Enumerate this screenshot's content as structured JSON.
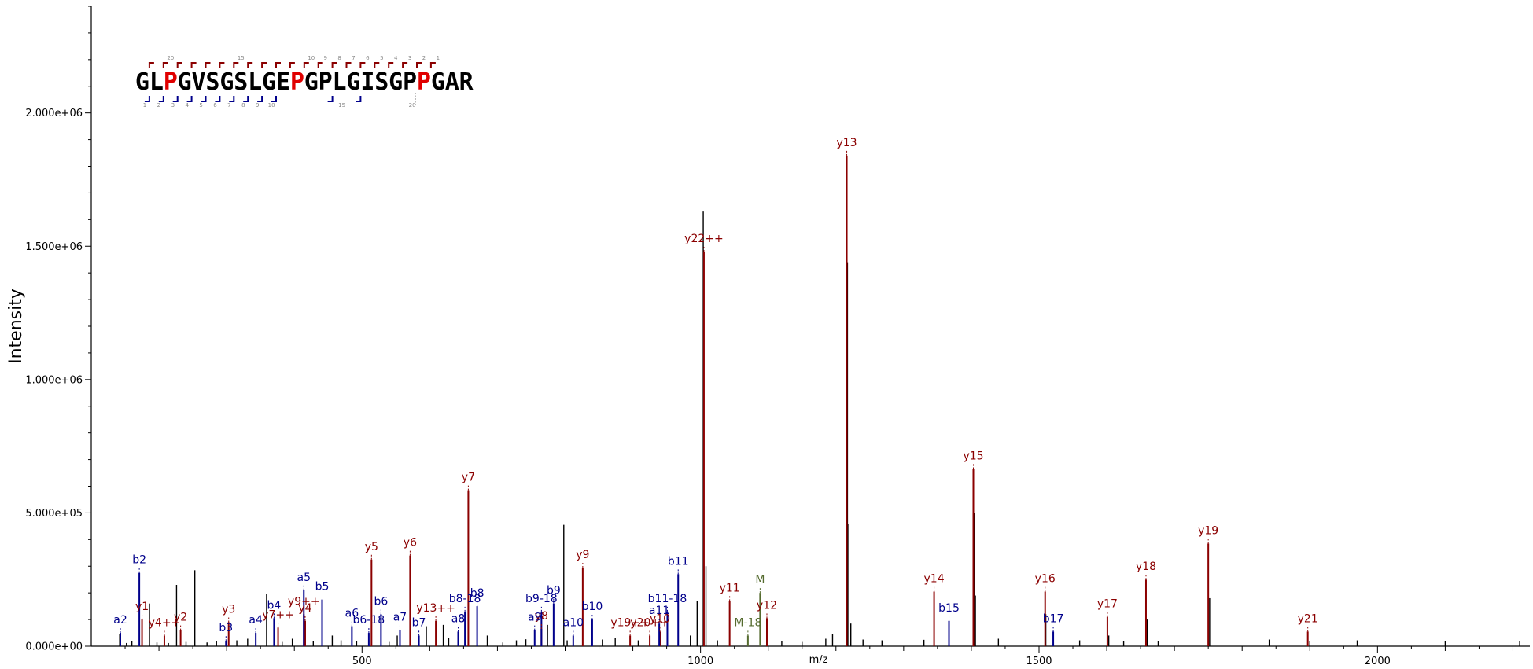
{
  "chart_data": {
    "type": "bar",
    "xlabel": "m/z",
    "ylabel": "Intensity",
    "xlim": [
      100,
      2225
    ],
    "ylim": [
      0,
      2400000
    ],
    "x_ticks": [
      500,
      1000,
      1500,
      2000
    ],
    "x_tick_labels": [
      "500",
      "1000",
      "1500",
      "2000"
    ],
    "y_ticks": [
      0,
      500000,
      1000000,
      1500000,
      2000000
    ],
    "y_tick_labels": [
      "0.000e+00",
      "5.000e+05",
      "1.000e+06",
      "1.500e+06",
      "2.000e+06"
    ],
    "colors": {
      "y": "#8b0000",
      "b": "#00008b",
      "m": "#556b2f",
      "unassigned": "#000000",
      "proline": "#e00000"
    },
    "sequence": [
      "G",
      "L",
      "P",
      "G",
      "V",
      "S",
      "G",
      "S",
      "L",
      "G",
      "E",
      "P",
      "G",
      "P",
      "L",
      "G",
      "I",
      "S",
      "G",
      "P",
      "P",
      "G",
      "A",
      "R"
    ],
    "sequence_top_numbers": [
      {
        "index": 2,
        "label": "20"
      },
      {
        "index": 7,
        "label": "15"
      },
      {
        "index": 12,
        "label": "10"
      },
      {
        "index": 13,
        "label": "9"
      },
      {
        "index": 14,
        "label": "8"
      },
      {
        "index": 15,
        "label": "7"
      },
      {
        "index": 16,
        "label": "6"
      },
      {
        "index": 17,
        "label": "5"
      },
      {
        "index": 18,
        "label": "4"
      },
      {
        "index": 19,
        "label": "3"
      },
      {
        "index": 20,
        "label": "2"
      },
      {
        "index": 21,
        "label": "1"
      }
    ],
    "sequence_bottom_numbers": [
      {
        "index": 0,
        "label": "1"
      },
      {
        "index": 1,
        "label": "2"
      },
      {
        "index": 2,
        "label": "3"
      },
      {
        "index": 3,
        "label": "4"
      },
      {
        "index": 4,
        "label": "5"
      },
      {
        "index": 5,
        "label": "6"
      },
      {
        "index": 6,
        "label": "7"
      },
      {
        "index": 7,
        "label": "8"
      },
      {
        "index": 8,
        "label": "9"
      },
      {
        "index": 9,
        "label": "10"
      },
      {
        "index": 14,
        "label": "15"
      },
      {
        "index": 19,
        "label": "20"
      }
    ],
    "proline_positions": [
      2,
      11,
      20
    ],
    "y_bracket_positions": [
      1,
      2,
      3,
      4,
      5,
      6,
      7,
      8,
      9,
      10,
      11,
      12,
      13,
      14,
      15,
      16,
      17,
      18,
      19,
      20,
      21
    ],
    "b_bracket_positions": [
      1,
      2,
      3,
      4,
      5,
      6,
      7,
      8,
      9,
      10,
      14,
      16
    ],
    "labeled_peaks": [
      {
        "mz": 1216,
        "intensity": 1840000,
        "label": "y13",
        "series": "y"
      },
      {
        "mz": 1005,
        "intensity": 1480000,
        "label": "y22++",
        "series": "y"
      },
      {
        "mz": 1403,
        "intensity": 665000,
        "label": "y15",
        "series": "y"
      },
      {
        "mz": 657,
        "intensity": 585000,
        "label": "y7",
        "series": "y"
      },
      {
        "mz": 1750,
        "intensity": 385000,
        "label": "y19",
        "series": "y"
      },
      {
        "mz": 514,
        "intensity": 325000,
        "label": "y5",
        "series": "y"
      },
      {
        "mz": 571,
        "intensity": 340000,
        "label": "y6",
        "series": "y"
      },
      {
        "mz": 826,
        "intensity": 295000,
        "label": "y9",
        "series": "y"
      },
      {
        "mz": 1658,
        "intensity": 250000,
        "label": "y18",
        "series": "y"
      },
      {
        "mz": 1509,
        "intensity": 205000,
        "label": "y16",
        "series": "y"
      },
      {
        "mz": 1345,
        "intensity": 205000,
        "label": "y14",
        "series": "y"
      },
      {
        "mz": 1601,
        "intensity": 110000,
        "label": "y17",
        "series": "y"
      },
      {
        "mz": 1043,
        "intensity": 170000,
        "label": "y11",
        "series": "y"
      },
      {
        "mz": 1098,
        "intensity": 105000,
        "label": "y12",
        "series": "y"
      },
      {
        "mz": 1897,
        "intensity": 55000,
        "label": "y21",
        "series": "y"
      },
      {
        "mz": 175,
        "intensity": 100000,
        "label": "y1",
        "series": "y"
      },
      {
        "mz": 232,
        "intensity": 60000,
        "label": "y2",
        "series": "y"
      },
      {
        "mz": 303,
        "intensity": 90000,
        "label": "y3",
        "series": "y"
      },
      {
        "mz": 416,
        "intensity": 95000,
        "label": "y4",
        "series": "y"
      },
      {
        "mz": 208,
        "intensity": 40000,
        "label": "y4++",
        "series": "y"
      },
      {
        "mz": 376,
        "intensity": 70000,
        "label": "y7++",
        "series": "y"
      },
      {
        "mz": 414,
        "intensity": 120000,
        "label": "y9++",
        "series": "y"
      },
      {
        "mz": 609,
        "intensity": 95000,
        "label": "y13++",
        "series": "y"
      },
      {
        "mz": 765,
        "intensity": 65000,
        "label": "y8",
        "series": "y"
      },
      {
        "mz": 896,
        "intensity": 40000,
        "label": "y19++",
        "series": "y"
      },
      {
        "mz": 925,
        "intensity": 40000,
        "label": "y20++",
        "series": "y"
      },
      {
        "mz": 940,
        "intensity": 55000,
        "label": "y10",
        "series": "y"
      },
      {
        "mz": 171,
        "intensity": 275000,
        "label": "b2",
        "series": "b"
      },
      {
        "mz": 143,
        "intensity": 50000,
        "label": "a2",
        "series": "b"
      },
      {
        "mz": 299,
        "intensity": 20000,
        "label": "b3",
        "series": "b"
      },
      {
        "mz": 343,
        "intensity": 50000,
        "label": "a4",
        "series": "b"
      },
      {
        "mz": 370,
        "intensity": 105000,
        "label": "b4",
        "series": "b"
      },
      {
        "mz": 414,
        "intensity": 210000,
        "label": "a5",
        "series": "b"
      },
      {
        "mz": 441,
        "intensity": 175000,
        "label": "b5",
        "series": "b"
      },
      {
        "mz": 485,
        "intensity": 75000,
        "label": "a6",
        "series": "b"
      },
      {
        "mz": 510,
        "intensity": 50000,
        "label": "b6-18",
        "series": "b"
      },
      {
        "mz": 528,
        "intensity": 120000,
        "label": "b6",
        "series": "b"
      },
      {
        "mz": 556,
        "intensity": 60000,
        "label": "a7",
        "series": "b"
      },
      {
        "mz": 584,
        "intensity": 40000,
        "label": "b7",
        "series": "b"
      },
      {
        "mz": 642,
        "intensity": 55000,
        "label": "a8",
        "series": "b"
      },
      {
        "mz": 652,
        "intensity": 130000,
        "label": "b8-18",
        "series": "b"
      },
      {
        "mz": 670,
        "intensity": 150000,
        "label": "b8",
        "series": "b"
      },
      {
        "mz": 755,
        "intensity": 60000,
        "label": "a9",
        "series": "b"
      },
      {
        "mz": 765,
        "intensity": 130000,
        "label": "b9-18",
        "series": "b"
      },
      {
        "mz": 783,
        "intensity": 160000,
        "label": "b9",
        "series": "b"
      },
      {
        "mz": 812,
        "intensity": 40000,
        "label": "a10",
        "series": "b"
      },
      {
        "mz": 840,
        "intensity": 100000,
        "label": "b10",
        "series": "b"
      },
      {
        "mz": 939,
        "intensity": 85000,
        "label": "a11",
        "series": "b"
      },
      {
        "mz": 951,
        "intensity": 130000,
        "label": "b11-18",
        "series": "b"
      },
      {
        "mz": 967,
        "intensity": 270000,
        "label": "b11",
        "series": "b"
      },
      {
        "mz": 1367,
        "intensity": 95000,
        "label": "b15",
        "series": "b"
      },
      {
        "mz": 1521,
        "intensity": 55000,
        "label": "b17",
        "series": "b"
      },
      {
        "mz": 1088,
        "intensity": 200000,
        "label": "M",
        "series": "m"
      },
      {
        "mz": 1070,
        "intensity": 40000,
        "label": "M-18",
        "series": "m"
      }
    ],
    "unlabeled_peaks": [
      {
        "mz": 142,
        "intensity": 45000
      },
      {
        "mz": 152,
        "intensity": 12000
      },
      {
        "mz": 160,
        "intensity": 20000
      },
      {
        "mz": 186,
        "intensity": 160000
      },
      {
        "mz": 197,
        "intensity": 14000
      },
      {
        "mz": 214,
        "intensity": 12000
      },
      {
        "mz": 226,
        "intensity": 230000
      },
      {
        "mz": 240,
        "intensity": 16000
      },
      {
        "mz": 253,
        "intensity": 285000
      },
      {
        "mz": 271,
        "intensity": 14000
      },
      {
        "mz": 285,
        "intensity": 18000
      },
      {
        "mz": 315,
        "intensity": 22000
      },
      {
        "mz": 331,
        "intensity": 28000
      },
      {
        "mz": 359,
        "intensity": 195000
      },
      {
        "mz": 382,
        "intensity": 16000
      },
      {
        "mz": 397,
        "intensity": 28000
      },
      {
        "mz": 428,
        "intensity": 20000
      },
      {
        "mz": 456,
        "intensity": 40000
      },
      {
        "mz": 469,
        "intensity": 22000
      },
      {
        "mz": 492,
        "intensity": 18000
      },
      {
        "mz": 540,
        "intensity": 16000
      },
      {
        "mz": 552,
        "intensity": 40000
      },
      {
        "mz": 595,
        "intensity": 75000
      },
      {
        "mz": 620,
        "intensity": 80000
      },
      {
        "mz": 628,
        "intensity": 32000
      },
      {
        "mz": 685,
        "intensity": 40000
      },
      {
        "mz": 708,
        "intensity": 14000
      },
      {
        "mz": 728,
        "intensity": 22000
      },
      {
        "mz": 742,
        "intensity": 26000
      },
      {
        "mz": 774,
        "intensity": 80000
      },
      {
        "mz": 798,
        "intensity": 455000
      },
      {
        "mz": 803,
        "intensity": 22000
      },
      {
        "mz": 855,
        "intensity": 25000
      },
      {
        "mz": 874,
        "intensity": 30000
      },
      {
        "mz": 908,
        "intensity": 22000
      },
      {
        "mz": 985,
        "intensity": 40000
      },
      {
        "mz": 995,
        "intensity": 170000
      },
      {
        "mz": 1004,
        "intensity": 1630000
      },
      {
        "mz": 1008,
        "intensity": 300000
      },
      {
        "mz": 1025,
        "intensity": 22000
      },
      {
        "mz": 1120,
        "intensity": 18000
      },
      {
        "mz": 1150,
        "intensity": 16000
      },
      {
        "mz": 1185,
        "intensity": 28000
      },
      {
        "mz": 1195,
        "intensity": 45000
      },
      {
        "mz": 1217,
        "intensity": 1440000
      },
      {
        "mz": 1219,
        "intensity": 460000
      },
      {
        "mz": 1222,
        "intensity": 85000
      },
      {
        "mz": 1240,
        "intensity": 25000
      },
      {
        "mz": 1268,
        "intensity": 22000
      },
      {
        "mz": 1330,
        "intensity": 24000
      },
      {
        "mz": 1404,
        "intensity": 500000
      },
      {
        "mz": 1406,
        "intensity": 190000
      },
      {
        "mz": 1440,
        "intensity": 28000
      },
      {
        "mz": 1510,
        "intensity": 120000
      },
      {
        "mz": 1560,
        "intensity": 22000
      },
      {
        "mz": 1603,
        "intensity": 40000
      },
      {
        "mz": 1625,
        "intensity": 18000
      },
      {
        "mz": 1660,
        "intensity": 100000
      },
      {
        "mz": 1676,
        "intensity": 20000
      },
      {
        "mz": 1752,
        "intensity": 180000
      },
      {
        "mz": 1840,
        "intensity": 25000
      },
      {
        "mz": 1900,
        "intensity": 18000
      },
      {
        "mz": 1970,
        "intensity": 22000
      },
      {
        "mz": 2100,
        "intensity": 18000
      },
      {
        "mz": 2210,
        "intensity": 20000
      }
    ]
  }
}
